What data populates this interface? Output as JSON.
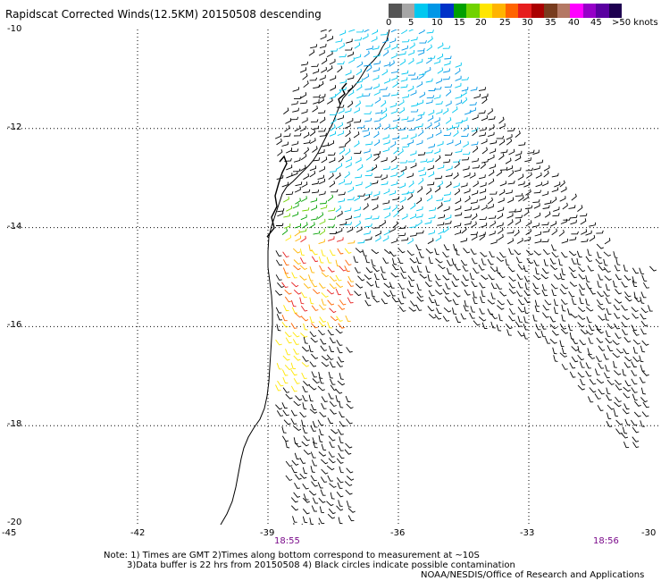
{
  "title": "Rapidscat Corrected Winds(12.5KM) 20150508 descending",
  "legend": {
    "labels": [
      "0",
      "5",
      "10",
      "15",
      "20",
      "25",
      "30",
      "35",
      "40",
      "45",
      ">50 knots"
    ],
    "colors": [
      "#555555",
      "#a6a6a6",
      "#00c8f0",
      "#0096e6",
      "#0032c8",
      "#00a000",
      "#70d200",
      "#ffe600",
      "#ffb400",
      "#ff6400",
      "#e61e1e",
      "#aa0000",
      "#783c1e",
      "#b47864",
      "#ff00ff",
      "#9600c8",
      "#5a00a0",
      "#1e0050"
    ]
  },
  "axes": {
    "y_labels": [
      "-10",
      "-12",
      "-14",
      "-16",
      "-18",
      "-20"
    ],
    "x_labels": [
      "-45",
      "-42",
      "-39",
      "-36",
      "-33",
      "-30"
    ]
  },
  "pass_times": [
    "18:55",
    "18:56"
  ],
  "notes": {
    "line1": "Note: 1) Times are GMT 2)Times along bottom correspond to measurement at ~10S",
    "line2": "3)Data buffer is 22 hrs from 20150508 4) Black circles indicate possible contamination",
    "line3": "NOAA/NESDIS/Office of Research and Applications"
  },
  "map": {
    "lon_range": [
      -45,
      -30
    ],
    "lat_range": [
      -20,
      -10
    ],
    "gridlines": "dotted",
    "coastline_color": "#000000"
  }
}
